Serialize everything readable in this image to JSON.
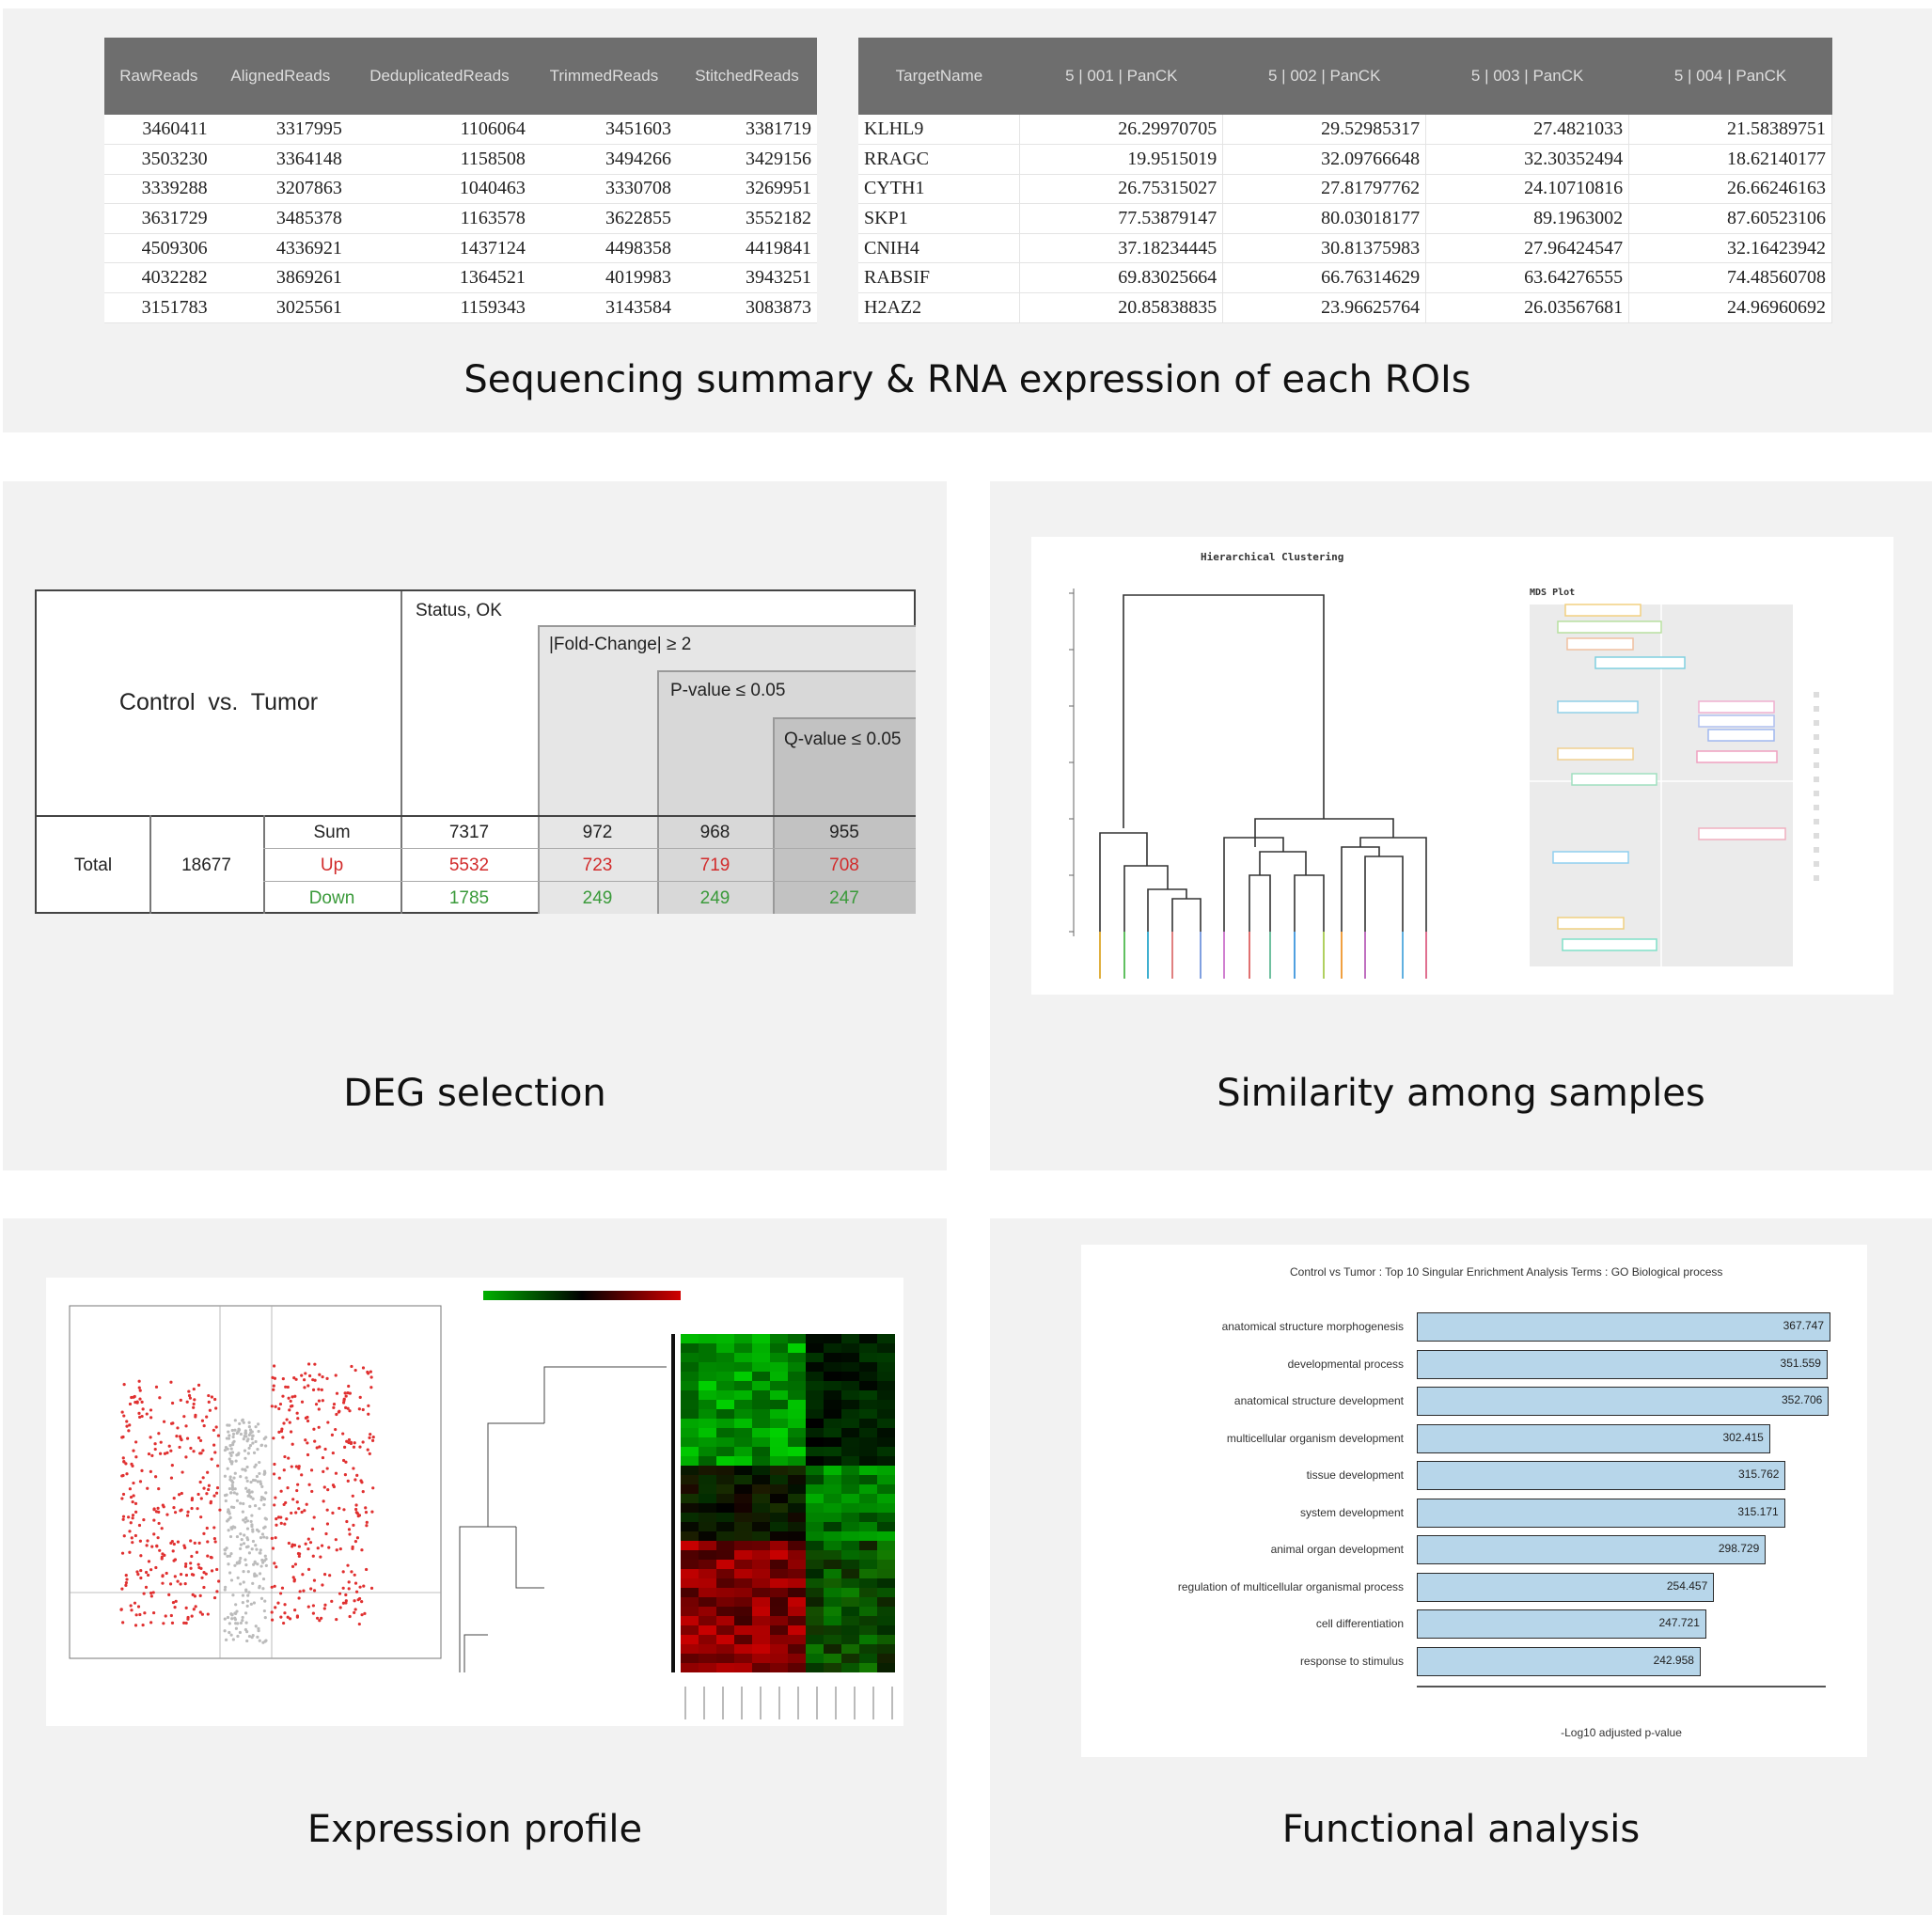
{
  "captions": {
    "top": "Sequencing summary & RNA expression of each ROIs",
    "deg": "DEG selection",
    "similarity": "Similarity among samples",
    "expression": "Expression profile",
    "functional": "Functional analysis"
  },
  "seq_table": {
    "headers": [
      "RawReads",
      "AlignedReads",
      "DeduplicatedReads",
      "TrimmedReads",
      "StitchedReads"
    ],
    "rows": [
      [
        "3460411",
        "3317995",
        "1106064",
        "3451603",
        "3381719"
      ],
      [
        "3503230",
        "3364148",
        "1158508",
        "3494266",
        "3429156"
      ],
      [
        "3339288",
        "3207863",
        "1040463",
        "3330708",
        "3269951"
      ],
      [
        "3631729",
        "3485378",
        "1163578",
        "3622855",
        "3552182"
      ],
      [
        "4509306",
        "4336921",
        "1437124",
        "4498358",
        "4419841"
      ],
      [
        "4032282",
        "3869261",
        "1364521",
        "4019983",
        "3943251"
      ],
      [
        "3151783",
        "3025561",
        "1159343",
        "3143584",
        "3083873"
      ]
    ]
  },
  "expr_table": {
    "headers": [
      "TargetName",
      "5 | 001 | PanCK",
      "5 | 002 | PanCK",
      "5 | 003 | PanCK",
      "5 | 004 | PanCK"
    ],
    "rows": [
      [
        "KLHL9",
        "26.29970705",
        "29.52985317",
        "27.4821033",
        "21.58389751"
      ],
      [
        "RRAGC",
        "19.9515019",
        "32.09766648",
        "32.30352494",
        "18.62140177"
      ],
      [
        "CYTH1",
        "26.75315027",
        "27.81797762",
        "24.10710816",
        "26.66246163"
      ],
      [
        "SKP1",
        "77.53879147",
        "80.03018177",
        "89.1963002",
        "87.60523106"
      ],
      [
        "CNIH4",
        "37.18234445",
        "30.81375983",
        "27.96424547",
        "32.16423942"
      ],
      [
        "RABSIF",
        "69.83025664",
        "66.76314629",
        "63.64276555",
        "74.48560708"
      ],
      [
        "H2AZ2",
        "20.85838835",
        "23.96625764",
        "26.03567681",
        "24.96960692"
      ]
    ]
  },
  "deg_table": {
    "comparison": "Control  vs.  Tumor",
    "status": "Status, OK",
    "fold": "|Fold-Change| ≥ 2",
    "pvalue": "P-value ≤ 0.05",
    "qvalue": "Q-value ≤ 0.05",
    "total_label": "Total",
    "total_value": "18677",
    "rows": [
      {
        "label": "Sum",
        "color": "#222222",
        "values": [
          "7317",
          "972",
          "968",
          "955"
        ]
      },
      {
        "label": "Up",
        "color": "#d22b2b",
        "values": [
          "5532",
          "723",
          "719",
          "708"
        ]
      },
      {
        "label": "Down",
        "color": "#3a9a3a",
        "values": [
          "1785",
          "249",
          "249",
          "247"
        ]
      }
    ]
  },
  "clustering": {
    "title": "Hierarchical Clustering",
    "mds_title": "MDS Plot"
  },
  "chart_data": {
    "type": "bar",
    "title": "Control vs Tumor : Top 10 Singular Enrichment Analysis Terms : GO Biological process",
    "xlabel": "-Log10 adjusted p-value",
    "categories": [
      "anatomical structure morphogenesis",
      "developmental process",
      "anatomical structure development",
      "multicellular organism development",
      "tissue development",
      "system development",
      "animal organ development",
      "regulation of multicellular organismal process",
      "cell differentiation",
      "response to stimulus"
    ],
    "values": [
      367.747,
      351.559,
      352.706,
      302.415,
      315.762,
      315.171,
      298.729,
      254.457,
      247.721,
      242.958
    ],
    "value_labels": [
      "367.747",
      "351.559",
      "352.706",
      "302.415",
      "315.762",
      "315.171",
      "298.729",
      "254.457",
      "247.721",
      "242.958"
    ],
    "xlim": [
      0,
      350
    ],
    "bar_color": "#b7d6ea"
  },
  "colors": {
    "panel": "#f2f2f2",
    "header": "#6e6e6e",
    "up": "#d22b2b",
    "down": "#3a9a3a"
  }
}
